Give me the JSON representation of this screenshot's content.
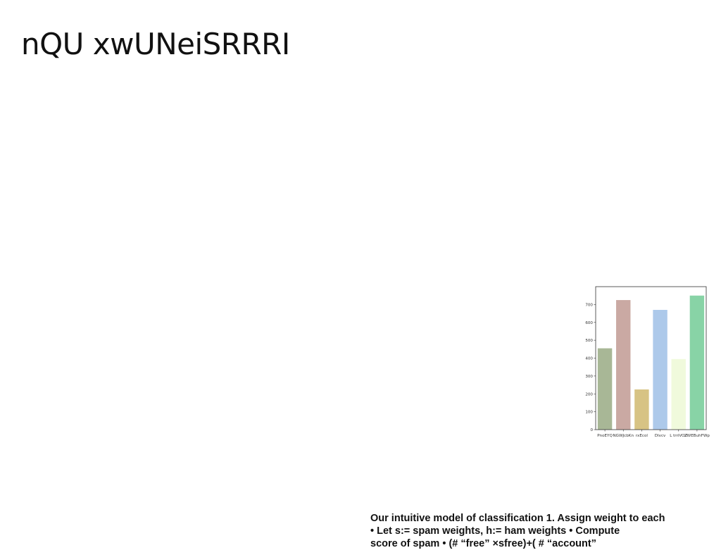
{
  "slide": {
    "title": "nQU xwUNeiSRRRI",
    "caption_lines": [
      "Our intuitive model of classification 1. Assign weight to each",
      "• Let s:= spam weights, h:= ham weights • Compute",
      "score of spam • (# “free” ×sfree)+( # “account”"
    ]
  },
  "chart_data": {
    "type": "bar",
    "categories": [
      "PnoEYQ",
      "NGWJcbKn",
      "rxEcol",
      "Dlvcv",
      "L trriVOZ",
      "ZWEBuhFWp"
    ],
    "values": [
      455,
      725,
      225,
      670,
      395,
      750
    ],
    "colors": [
      "#a8b796",
      "#caa9a3",
      "#d7c384",
      "#adc9ea",
      "#f0fadc",
      "#88d3a6"
    ],
    "ylim": [
      0,
      800
    ],
    "yticks": [
      0,
      100,
      200,
      300,
      400,
      500,
      600,
      700
    ],
    "title": "",
    "xlabel": "",
    "ylabel": "",
    "grid": false
  }
}
